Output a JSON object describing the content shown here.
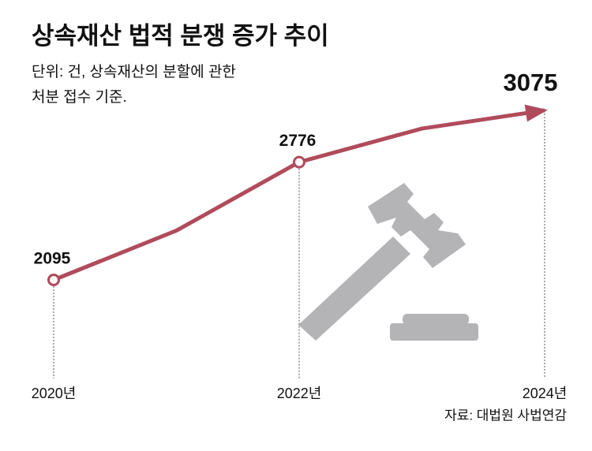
{
  "chart_data": {
    "type": "line",
    "title": "상속재산 법적 분쟁 증가 추이",
    "subtitle": [
      "단위: 건, 상속재산의 분할에 관한",
      "처분 접수 기준."
    ],
    "source": "자료: 대법원 사법연감",
    "categories": [
      "2020년",
      null,
      "2022년",
      null,
      "2024년"
    ],
    "values": [
      2095,
      2380,
      2776,
      2970,
      3075
    ],
    "color": "#b04b5b"
  }
}
